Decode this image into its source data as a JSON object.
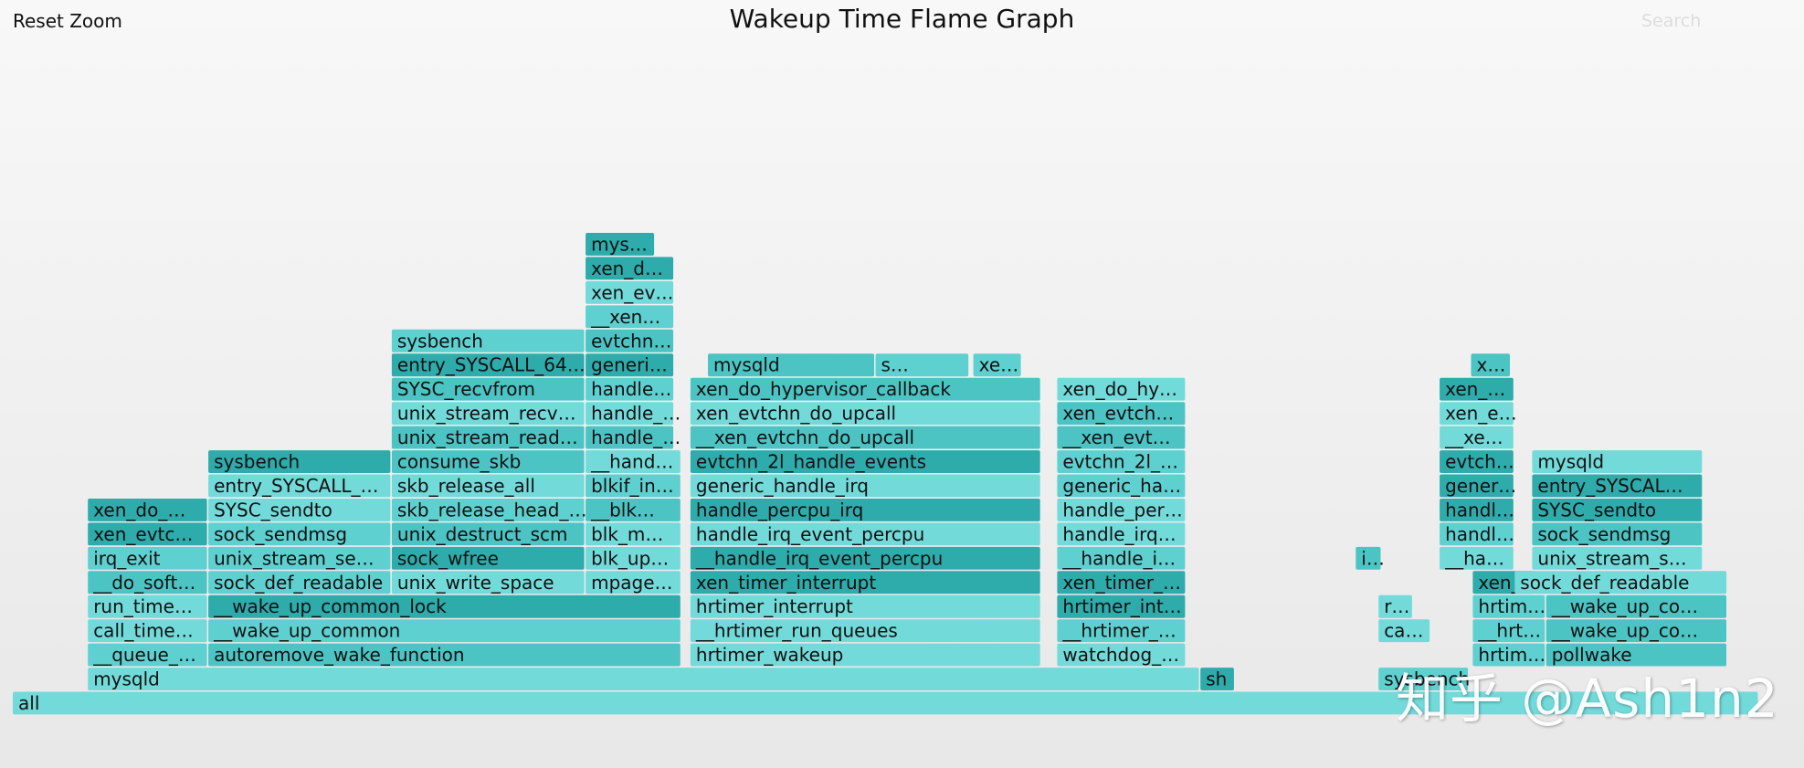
{
  "toolbar": {
    "reset_zoom": "Reset Zoom",
    "search": "Search"
  },
  "watermark": "知乎 @Ash1n2",
  "colors": {
    "frame_a": "#5fd0d0",
    "frame_b": "#2eabab",
    "frame_c": "#4cc4c4",
    "frame_d": "#73dada",
    "text": "#111111"
  },
  "chart_data": {
    "type": "flame",
    "title": "Wakeup Time Flame Graph",
    "xlim": [
      0,
      100
    ],
    "frames": [
      {
        "name": "all",
        "depth": 0,
        "x": 0.0,
        "w": 100.0
      },
      {
        "name": "mysqld",
        "depth": 1,
        "x": 4.3,
        "w": 63.7
      },
      {
        "name": "sh",
        "depth": 1,
        "x": 68.0,
        "w": 2.0
      },
      {
        "name": "sysbench",
        "depth": 1,
        "x": 78.2,
        "w": 5.2
      },
      {
        "name": "__queue_…",
        "depth": 2,
        "x": 4.3,
        "w": 6.9
      },
      {
        "name": "autoremove_wake_function",
        "depth": 2,
        "x": 11.2,
        "w": 27.1
      },
      {
        "name": "hrtimer_wakeup",
        "depth": 2,
        "x": 38.8,
        "w": 20.1
      },
      {
        "name": "watchdog_…",
        "depth": 2,
        "x": 59.8,
        "w": 7.4
      },
      {
        "name": "hrtim…",
        "depth": 2,
        "x": 83.6,
        "w": 4.2
      },
      {
        "name": "pollwake",
        "depth": 2,
        "x": 87.8,
        "w": 10.4
      },
      {
        "name": "call_time…",
        "depth": 3,
        "x": 4.3,
        "w": 6.9
      },
      {
        "name": "__wake_up_common",
        "depth": 3,
        "x": 11.2,
        "w": 27.1
      },
      {
        "name": "__hrtimer_run_queues",
        "depth": 3,
        "x": 38.8,
        "w": 20.1
      },
      {
        "name": "__hrtimer_…",
        "depth": 3,
        "x": 59.8,
        "w": 7.4
      },
      {
        "name": "ca…",
        "depth": 3,
        "x": 78.2,
        "w": 3.0
      },
      {
        "name": "__hrt…",
        "depth": 3,
        "x": 83.6,
        "w": 4.2
      },
      {
        "name": "__wake_up_co…",
        "depth": 3,
        "x": 87.8,
        "w": 10.4
      },
      {
        "name": "run_time…",
        "depth": 4,
        "x": 4.3,
        "w": 6.9
      },
      {
        "name": "__wake_up_common_lock",
        "depth": 4,
        "x": 11.2,
        "w": 27.1
      },
      {
        "name": "hrtimer_interrupt",
        "depth": 4,
        "x": 38.8,
        "w": 20.1
      },
      {
        "name": "hrtimer_int…",
        "depth": 4,
        "x": 59.8,
        "w": 7.4
      },
      {
        "name": "r…",
        "depth": 4,
        "x": 78.2,
        "w": 2.0
      },
      {
        "name": "hrtim…",
        "depth": 4,
        "x": 83.6,
        "w": 4.2
      },
      {
        "name": "__wake_up_co…",
        "depth": 4,
        "x": 87.8,
        "w": 10.4
      },
      {
        "name": "__do_soft…",
        "depth": 5,
        "x": 4.3,
        "w": 6.9
      },
      {
        "name": "sock_def_readable",
        "depth": 5,
        "x": 11.2,
        "w": 10.5
      },
      {
        "name": "unix_write_space",
        "depth": 5,
        "x": 21.7,
        "w": 11.1
      },
      {
        "name": "mpage…",
        "depth": 5,
        "x": 32.8,
        "w": 5.5
      },
      {
        "name": "xen_timer_interrupt",
        "depth": 5,
        "x": 38.8,
        "w": 20.1
      },
      {
        "name": "xen_timer_…",
        "depth": 5,
        "x": 59.8,
        "w": 7.4
      },
      {
        "name": "xen_…",
        "depth": 5,
        "x": 83.6,
        "w": 3.6
      },
      {
        "name": "sock_def_readable",
        "depth": 5,
        "x": 86.0,
        "w": 12.2
      },
      {
        "name": "irq_exit",
        "depth": 6,
        "x": 4.3,
        "w": 6.9
      },
      {
        "name": "unix_stream_se…",
        "depth": 6,
        "x": 11.2,
        "w": 10.5
      },
      {
        "name": "sock_wfree",
        "depth": 6,
        "x": 21.7,
        "w": 11.1
      },
      {
        "name": "blk_up…",
        "depth": 6,
        "x": 32.8,
        "w": 5.5
      },
      {
        "name": "__handle_irq_event_percpu",
        "depth": 6,
        "x": 38.8,
        "w": 20.1
      },
      {
        "name": "__handle_i…",
        "depth": 6,
        "x": 59.8,
        "w": 7.4
      },
      {
        "name": "i…",
        "depth": 6,
        "x": 76.9,
        "w": 1.5
      },
      {
        "name": "__ha…",
        "depth": 6,
        "x": 81.7,
        "w": 4.3
      },
      {
        "name": "unix_stream_s…",
        "depth": 6,
        "x": 87.0,
        "w": 9.8
      },
      {
        "name": "xen_evtc…",
        "depth": 7,
        "x": 4.3,
        "w": 6.9
      },
      {
        "name": "sock_sendmsg",
        "depth": 7,
        "x": 11.2,
        "w": 10.5
      },
      {
        "name": "unix_destruct_scm",
        "depth": 7,
        "x": 21.7,
        "w": 11.1
      },
      {
        "name": "blk_m…",
        "depth": 7,
        "x": 32.8,
        "w": 5.5
      },
      {
        "name": "handle_irq_event_percpu",
        "depth": 7,
        "x": 38.8,
        "w": 20.1
      },
      {
        "name": "handle_irq…",
        "depth": 7,
        "x": 59.8,
        "w": 7.4
      },
      {
        "name": "handl…",
        "depth": 7,
        "x": 81.7,
        "w": 4.3
      },
      {
        "name": "sock_sendmsg",
        "depth": 7,
        "x": 87.0,
        "w": 9.8
      },
      {
        "name": "xen_do_…",
        "depth": 8,
        "x": 4.3,
        "w": 6.9
      },
      {
        "name": "SYSC_sendto",
        "depth": 8,
        "x": 11.2,
        "w": 10.5
      },
      {
        "name": "skb_release_head_…",
        "depth": 8,
        "x": 21.7,
        "w": 11.1
      },
      {
        "name": "__blk…",
        "depth": 8,
        "x": 32.8,
        "w": 5.5
      },
      {
        "name": "handle_percpu_irq",
        "depth": 8,
        "x": 38.8,
        "w": 20.1
      },
      {
        "name": "handle_per…",
        "depth": 8,
        "x": 59.8,
        "w": 7.4
      },
      {
        "name": "handl…",
        "depth": 8,
        "x": 81.7,
        "w": 4.3
      },
      {
        "name": "SYSC_sendto",
        "depth": 8,
        "x": 87.0,
        "w": 9.8
      },
      {
        "name": "entry_SYSCALL_…",
        "depth": 9,
        "x": 11.2,
        "w": 10.5
      },
      {
        "name": "skb_release_all",
        "depth": 9,
        "x": 21.7,
        "w": 11.1
      },
      {
        "name": "blkif_in…",
        "depth": 9,
        "x": 32.8,
        "w": 5.5
      },
      {
        "name": "generic_handle_irq",
        "depth": 9,
        "x": 38.8,
        "w": 20.1
      },
      {
        "name": "generic_ha…",
        "depth": 9,
        "x": 59.8,
        "w": 7.4
      },
      {
        "name": "gener…",
        "depth": 9,
        "x": 81.7,
        "w": 4.3
      },
      {
        "name": "entry_SYSCAL…",
        "depth": 9,
        "x": 87.0,
        "w": 9.8
      },
      {
        "name": "sysbench",
        "depth": 10,
        "x": 11.2,
        "w": 10.5
      },
      {
        "name": "consume_skb",
        "depth": 10,
        "x": 21.7,
        "w": 11.1
      },
      {
        "name": "__hand…",
        "depth": 10,
        "x": 32.8,
        "w": 5.5
      },
      {
        "name": "evtchn_2l_handle_events",
        "depth": 10,
        "x": 38.8,
        "w": 20.1
      },
      {
        "name": "evtchn_2l_…",
        "depth": 10,
        "x": 59.8,
        "w": 7.4
      },
      {
        "name": "evtch…",
        "depth": 10,
        "x": 81.7,
        "w": 4.3
      },
      {
        "name": "mysqld",
        "depth": 10,
        "x": 87.0,
        "w": 9.8
      },
      {
        "name": "unix_stream_read…",
        "depth": 11,
        "x": 21.7,
        "w": 11.1
      },
      {
        "name": "handle_…",
        "depth": 11,
        "x": 32.8,
        "w": 5.1
      },
      {
        "name": "__xen_evtchn_do_upcall",
        "depth": 11,
        "x": 38.8,
        "w": 20.1
      },
      {
        "name": "__xen_evt…",
        "depth": 11,
        "x": 59.8,
        "w": 7.4
      },
      {
        "name": "__xe…",
        "depth": 11,
        "x": 81.7,
        "w": 4.3
      },
      {
        "name": "unix_stream_recv…",
        "depth": 12,
        "x": 21.7,
        "w": 11.1
      },
      {
        "name": "handle_…",
        "depth": 12,
        "x": 32.8,
        "w": 5.1
      },
      {
        "name": "xen_evtchn_do_upcall",
        "depth": 12,
        "x": 38.8,
        "w": 20.1
      },
      {
        "name": "xen_evtch…",
        "depth": 12,
        "x": 59.8,
        "w": 7.4
      },
      {
        "name": "xen_e…",
        "depth": 12,
        "x": 81.7,
        "w": 4.3
      },
      {
        "name": "SYSC_recvfrom",
        "depth": 13,
        "x": 21.7,
        "w": 11.1
      },
      {
        "name": "handle…",
        "depth": 13,
        "x": 32.8,
        "w": 5.1
      },
      {
        "name": "xen_do_hypervisor_callback",
        "depth": 13,
        "x": 38.8,
        "w": 20.1
      },
      {
        "name": "xen_do_hy…",
        "depth": 13,
        "x": 59.8,
        "w": 7.4
      },
      {
        "name": "xen_…",
        "depth": 13,
        "x": 81.7,
        "w": 4.3
      },
      {
        "name": "entry_SYSCALL_64…",
        "depth": 14,
        "x": 21.7,
        "w": 11.1
      },
      {
        "name": "generi…",
        "depth": 14,
        "x": 32.8,
        "w": 5.1
      },
      {
        "name": "mysqld",
        "depth": 14,
        "x": 39.8,
        "w": 9.6
      },
      {
        "name": "s…",
        "depth": 14,
        "x": 49.4,
        "w": 5.4
      },
      {
        "name": "xe…",
        "depth": 14,
        "x": 55.0,
        "w": 2.8
      },
      {
        "name": "x…",
        "depth": 14,
        "x": 83.5,
        "w": 2.3
      },
      {
        "name": "sysbench",
        "depth": 15,
        "x": 21.7,
        "w": 11.1
      },
      {
        "name": "evtchn…",
        "depth": 15,
        "x": 32.8,
        "w": 5.1
      },
      {
        "name": "__xen…",
        "depth": 16,
        "x": 32.8,
        "w": 5.1
      },
      {
        "name": "xen_ev…",
        "depth": 17,
        "x": 32.8,
        "w": 5.1
      },
      {
        "name": "xen_d…",
        "depth": 18,
        "x": 32.8,
        "w": 5.1
      },
      {
        "name": "mys…",
        "depth": 19,
        "x": 32.8,
        "w": 4.0
      }
    ]
  }
}
